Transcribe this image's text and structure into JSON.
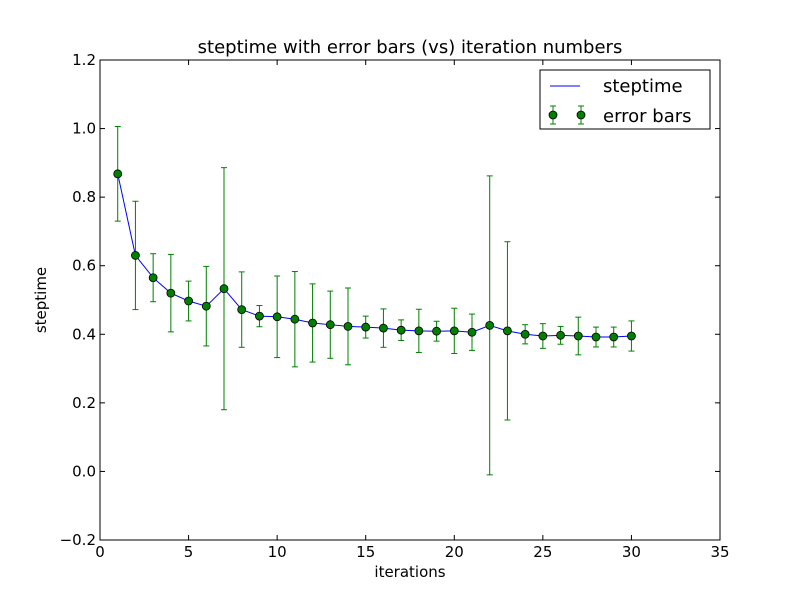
{
  "chart_data": {
    "type": "line",
    "title": "steptime with error bars (vs) iteration numbers",
    "xlabel": "iterations",
    "ylabel": "steptime",
    "xlim": [
      0,
      35
    ],
    "ylim": [
      -0.2,
      1.2
    ],
    "xticks": [
      "0",
      "5",
      "10",
      "15",
      "20",
      "25",
      "30",
      "35"
    ],
    "yticks": [
      "−0.2",
      "0.0",
      "0.2",
      "0.4",
      "0.6",
      "0.8",
      "1.0",
      "1.2"
    ],
    "grid": false,
    "legend_position": "top-right",
    "series": [
      {
        "name": "steptime",
        "kind": "line",
        "color": "#0000ff",
        "x": [
          1,
          2,
          3,
          4,
          5,
          6,
          7,
          8,
          9,
          10,
          11,
          12,
          13,
          14,
          15,
          16,
          17,
          18,
          19,
          20,
          21,
          22,
          23,
          24,
          25,
          26,
          27,
          28,
          29,
          30
        ],
        "y": [
          0.868,
          0.63,
          0.565,
          0.52,
          0.497,
          0.482,
          0.533,
          0.472,
          0.453,
          0.451,
          0.444,
          0.433,
          0.428,
          0.423,
          0.421,
          0.418,
          0.412,
          0.41,
          0.409,
          0.41,
          0.406,
          0.426,
          0.41,
          0.4,
          0.395,
          0.397,
          0.395,
          0.392,
          0.392,
          0.395
        ]
      },
      {
        "name": "error bars",
        "kind": "errorbar",
        "color": "#008000",
        "marker_face": "#007f00",
        "x": [
          1,
          2,
          3,
          4,
          5,
          6,
          7,
          8,
          9,
          10,
          11,
          12,
          13,
          14,
          15,
          16,
          17,
          18,
          19,
          20,
          21,
          22,
          23,
          24,
          25,
          26,
          27,
          28,
          29,
          30
        ],
        "y": [
          0.868,
          0.63,
          0.565,
          0.52,
          0.497,
          0.482,
          0.533,
          0.472,
          0.453,
          0.451,
          0.444,
          0.433,
          0.428,
          0.423,
          0.421,
          0.418,
          0.412,
          0.41,
          0.409,
          0.41,
          0.406,
          0.426,
          0.41,
          0.4,
          0.395,
          0.397,
          0.395,
          0.392,
          0.392,
          0.395
        ],
        "err": [
          0.138,
          0.158,
          0.07,
          0.113,
          0.058,
          0.116,
          0.353,
          0.11,
          0.031,
          0.119,
          0.139,
          0.114,
          0.098,
          0.112,
          0.032,
          0.056,
          0.03,
          0.063,
          0.029,
          0.066,
          0.053,
          0.436,
          0.26,
          0.028,
          0.036,
          0.026,
          0.055,
          0.029,
          0.029,
          0.044
        ]
      }
    ]
  }
}
